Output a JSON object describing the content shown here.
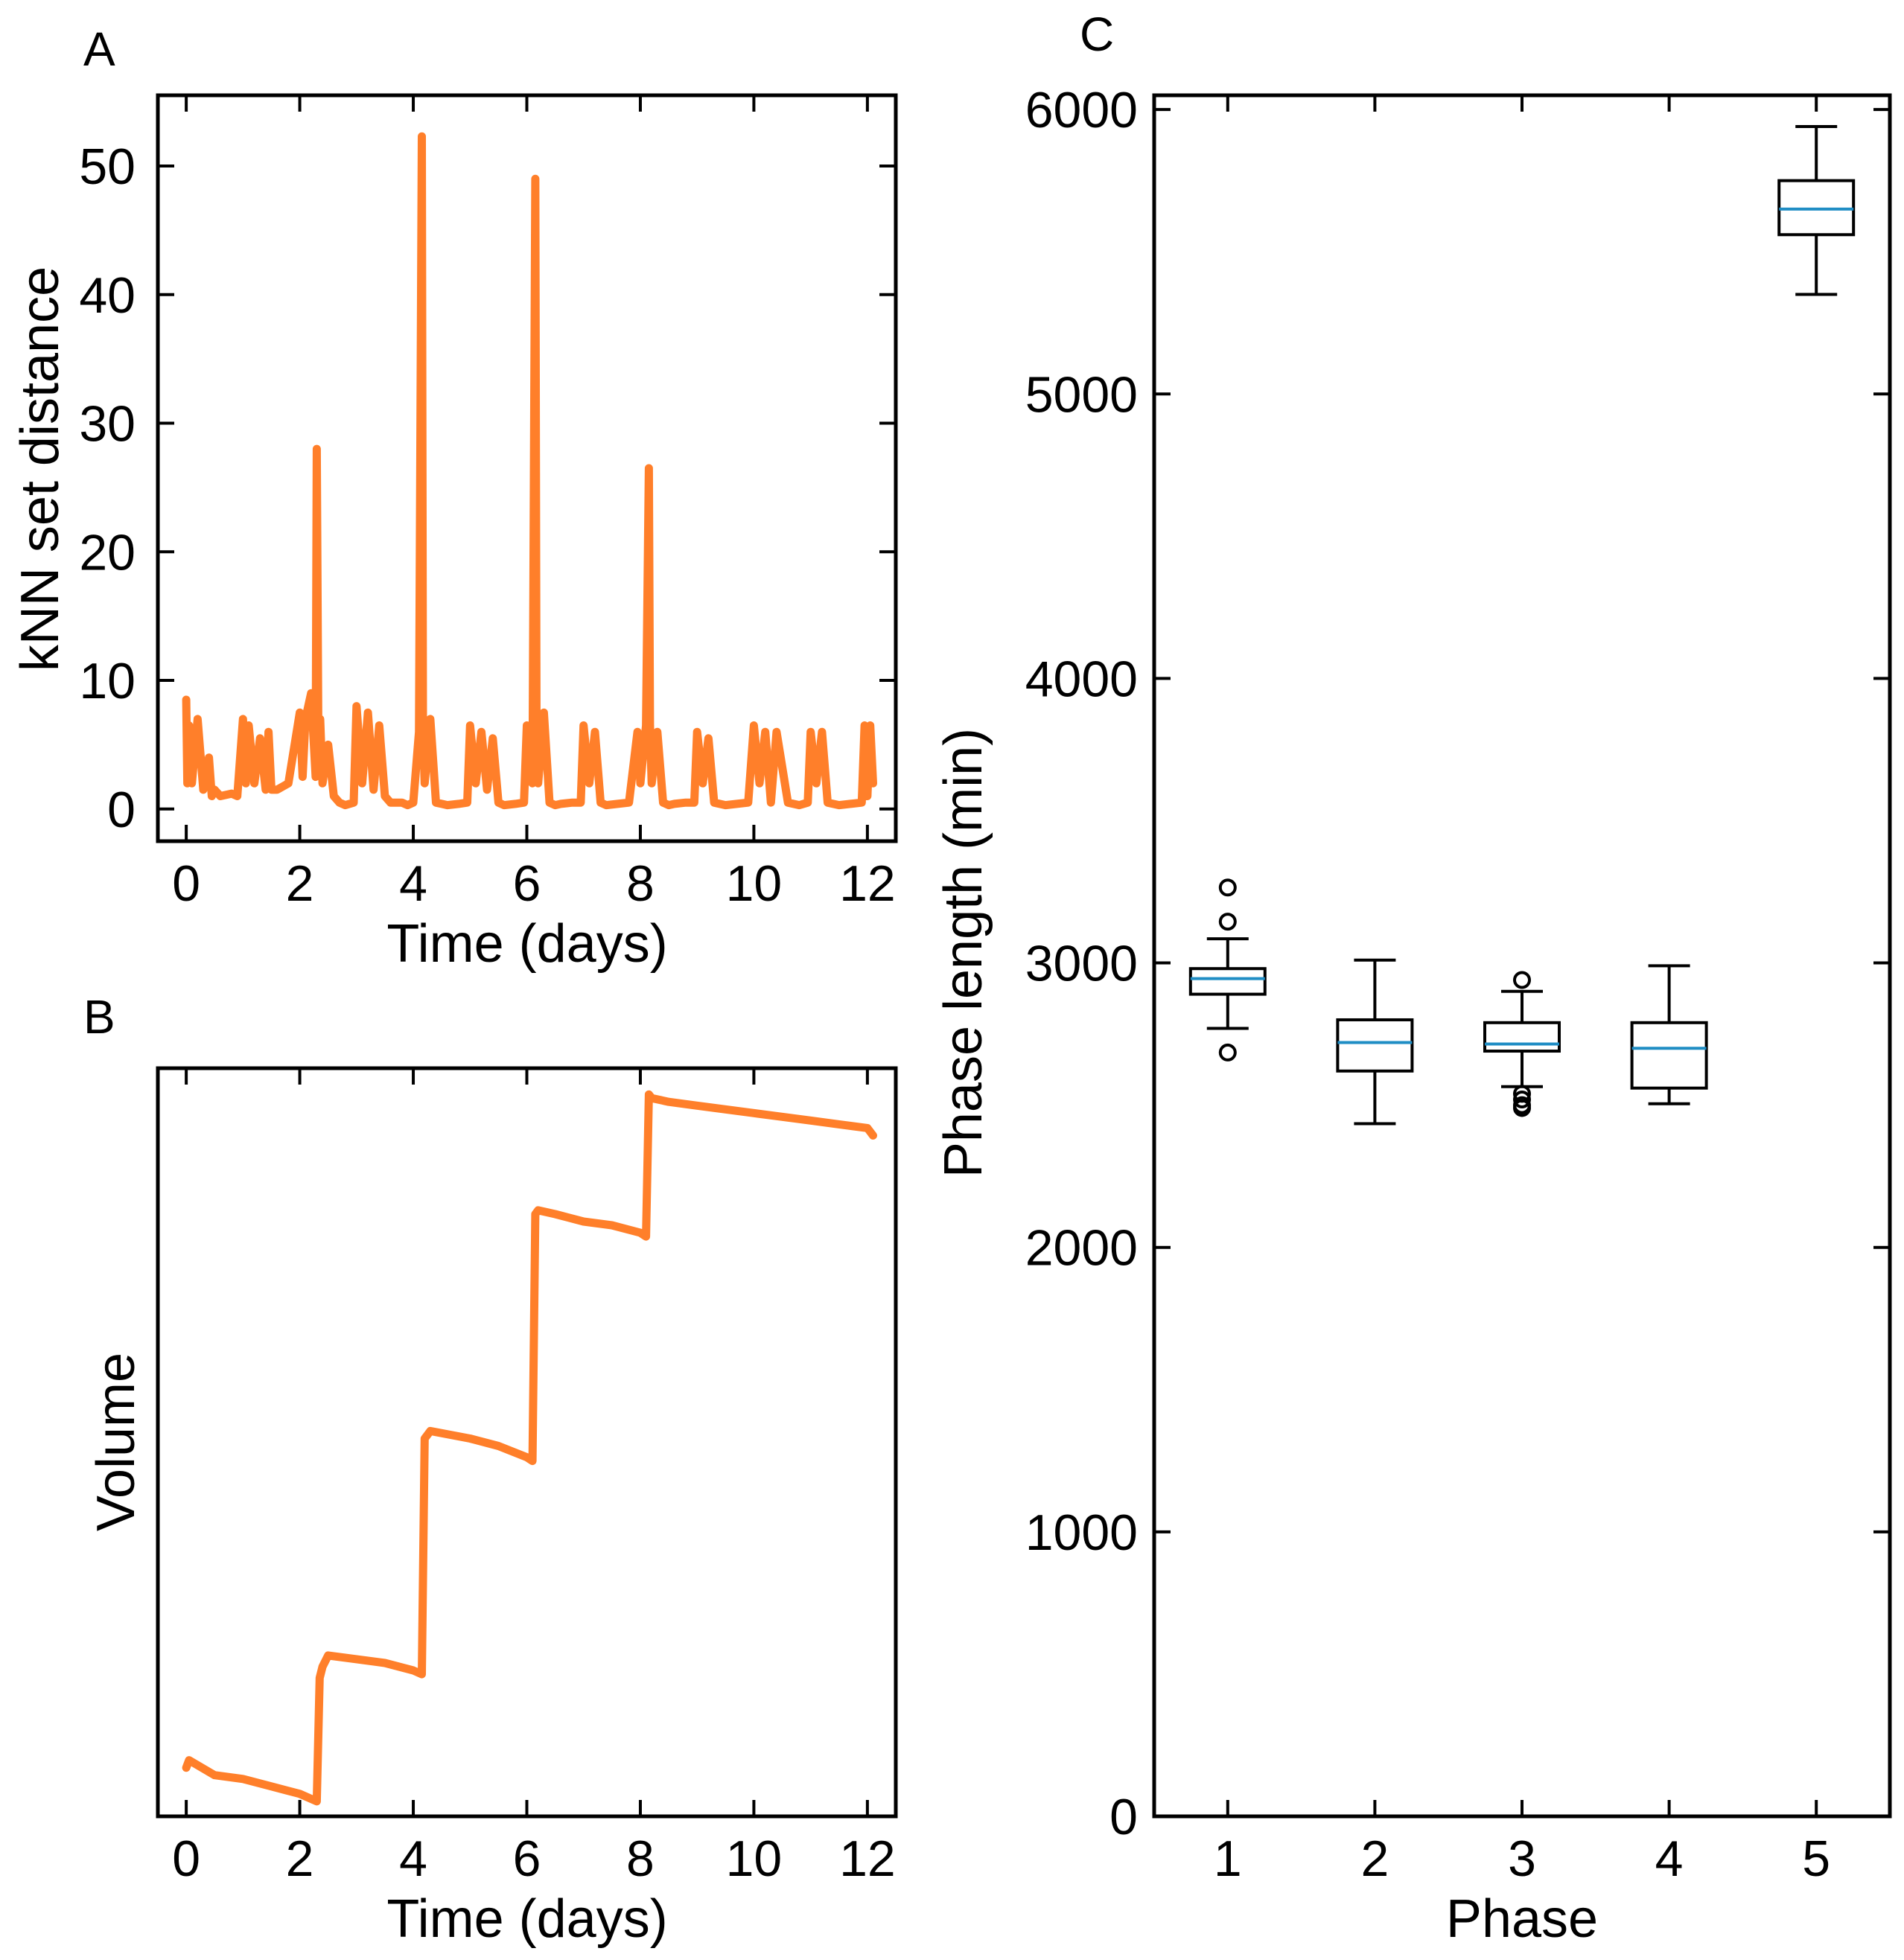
{
  "colors": {
    "series": "#FF7F2A",
    "median": "#1F8DC4",
    "axes": "#000000"
  },
  "chart_data": [
    {
      "panel": "A",
      "type": "line",
      "xlabel": "Time (days)",
      "ylabel": "kNN set distance",
      "xlim": [
        -0.5,
        12.5
      ],
      "ylim": [
        -2.5,
        55.5
      ],
      "xticks": [
        0,
        2,
        4,
        6,
        8,
        10,
        12
      ],
      "yticks": [
        0,
        10,
        20,
        30,
        40,
        50
      ],
      "xtick_labels": [
        "0",
        "2",
        "4",
        "6",
        "8",
        "10",
        "12"
      ],
      "ytick_labels": [
        "0",
        "10",
        "20",
        "30",
        "40",
        "50"
      ],
      "series": [
        {
          "name": "kNN set distance",
          "x": [
            0,
            0.02,
            0.05,
            0.1,
            0.2,
            0.3,
            0.4,
            0.45,
            0.5,
            0.6,
            0.8,
            0.9,
            1.0,
            1.05,
            1.1,
            1.2,
            1.3,
            1.4,
            1.45,
            1.5,
            1.6,
            1.8,
            2.0,
            2.05,
            2.1,
            2.2,
            2.28,
            2.3,
            2.33,
            2.36,
            2.4,
            2.5,
            2.6,
            2.7,
            2.8,
            2.95,
            3.0,
            3.1,
            3.2,
            3.3,
            3.4,
            3.5,
            3.6,
            3.8,
            3.9,
            4.0,
            4.1,
            4.15,
            4.17,
            4.2,
            4.3,
            4.4,
            4.5,
            4.6,
            4.8,
            4.95,
            5.0,
            5.1,
            5.2,
            5.3,
            5.4,
            5.5,
            5.6,
            5.8,
            5.95,
            6.0,
            6.1,
            6.15,
            6.17,
            6.2,
            6.3,
            6.4,
            6.5,
            6.6,
            6.8,
            6.95,
            7.0,
            7.1,
            7.2,
            7.3,
            7.4,
            7.6,
            7.8,
            7.95,
            8.0,
            8.1,
            8.15,
            8.17,
            8.2,
            8.3,
            8.4,
            8.5,
            8.6,
            8.8,
            8.95,
            9.0,
            9.1,
            9.2,
            9.3,
            9.5,
            9.7,
            9.9,
            10.0,
            10.1,
            10.2,
            10.3,
            10.4,
            10.6,
            10.8,
            10.95,
            11.0,
            11.1,
            11.2,
            11.3,
            11.5,
            11.7,
            11.9,
            11.95,
            12.0,
            12.05,
            12.1
          ],
          "y": [
            8.5,
            2.0,
            6.5,
            2.0,
            7.0,
            1.5,
            4.0,
            1.0,
            1.5,
            1.0,
            1.2,
            1.0,
            7.0,
            2.0,
            6.5,
            2.0,
            5.5,
            1.5,
            6.0,
            1.5,
            1.5,
            2.0,
            7.5,
            2.5,
            7.0,
            9.0,
            2.5,
            28.0,
            3.5,
            7.0,
            2.0,
            5.0,
            1.0,
            0.5,
            0.3,
            0.5,
            8.0,
            2.0,
            7.5,
            1.5,
            6.5,
            1.0,
            0.5,
            0.5,
            0.3,
            0.5,
            6.0,
            52.3,
            6.5,
            2.0,
            7.0,
            0.5,
            0.4,
            0.3,
            0.4,
            0.5,
            6.5,
            2.0,
            6.0,
            1.5,
            5.5,
            0.5,
            0.3,
            0.4,
            0.5,
            6.5,
            2.0,
            49.0,
            6.5,
            2.0,
            7.5,
            0.5,
            0.3,
            0.4,
            0.5,
            0.5,
            6.5,
            2.0,
            6.0,
            0.5,
            0.3,
            0.4,
            0.5,
            6.0,
            2.0,
            6.5,
            26.5,
            6.5,
            2.0,
            6.0,
            0.5,
            0.3,
            0.4,
            0.5,
            0.5,
            6.0,
            2.0,
            5.5,
            0.5,
            0.3,
            0.4,
            0.5,
            6.5,
            2.0,
            6.0,
            0.5,
            6.0,
            0.5,
            0.3,
            0.5,
            6.0,
            2.0,
            6.0,
            0.5,
            0.3,
            0.4,
            0.5,
            6.5,
            1.0,
            6.5,
            2.0
          ]
        }
      ]
    },
    {
      "panel": "B",
      "type": "line",
      "xlabel": "Time (days)",
      "ylabel": "Volume",
      "xlim": [
        -0.5,
        12.5
      ],
      "ylim": [
        0,
        100
      ],
      "xticks": [
        0,
        2,
        4,
        6,
        8,
        10,
        12
      ],
      "xtick_labels": [
        "0",
        "2",
        "4",
        "6",
        "8",
        "10",
        "12"
      ],
      "yticks": [],
      "series": [
        {
          "name": "Volume",
          "x": [
            0,
            0.05,
            0.5,
            1.0,
            1.5,
            2.0,
            2.3,
            2.35,
            2.4,
            2.5,
            3.0,
            3.5,
            4.0,
            4.15,
            4.2,
            4.3,
            5.0,
            5.5,
            6.0,
            6.1,
            6.15,
            6.2,
            6.5,
            7.0,
            7.5,
            8.0,
            8.1,
            8.15,
            8.2,
            8.5,
            9.0,
            9.5,
            10.0,
            10.5,
            11.0,
            11.5,
            12.0,
            12.1
          ],
          "y": [
            6.5,
            7.5,
            5.5,
            5.0,
            4.0,
            3.0,
            2.0,
            18.5,
            20.0,
            21.5,
            21.0,
            20.5,
            19.5,
            19.0,
            50.5,
            51.5,
            50.5,
            49.5,
            48.0,
            47.5,
            80.5,
            81.0,
            80.5,
            79.5,
            79.0,
            78.0,
            77.5,
            96.5,
            96.0,
            95.5,
            95.0,
            94.5,
            94.0,
            93.5,
            93.0,
            92.5,
            92.0,
            91.0
          ]
        }
      ]
    },
    {
      "panel": "C",
      "type": "box",
      "xlabel": "Phase",
      "ylabel": "Phase length (min)",
      "categories": [
        "1",
        "2",
        "3",
        "4",
        "5"
      ],
      "ylim": [
        0,
        6050
      ],
      "yticks": [
        0,
        1000,
        2000,
        3000,
        4000,
        5000,
        6000
      ],
      "ytick_labels": [
        "0",
        "1000",
        "2000",
        "3000",
        "4000",
        "5000",
        "6000"
      ],
      "boxes": [
        {
          "category": "1",
          "whislo": 2770,
          "q1": 2890,
          "median": 2945,
          "q3": 2980,
          "whishi": 3085,
          "fliers": [
            3265,
            3145,
            2685
          ]
        },
        {
          "category": "2",
          "whislo": 2435,
          "q1": 2620,
          "median": 2720,
          "q3": 2800,
          "whishi": 3010,
          "fliers": []
        },
        {
          "category": "3",
          "whislo": 2565,
          "q1": 2690,
          "median": 2715,
          "q3": 2790,
          "whishi": 2900,
          "fliers": [
            2940,
            2540,
            2520,
            2500,
            2490
          ]
        },
        {
          "category": "4",
          "whislo": 2505,
          "q1": 2560,
          "median": 2700,
          "q3": 2790,
          "whishi": 2990,
          "fliers": []
        },
        {
          "category": "5",
          "whislo": 5350,
          "q1": 5560,
          "median": 5650,
          "q3": 5750,
          "whishi": 5940,
          "fliers": []
        }
      ]
    }
  ]
}
